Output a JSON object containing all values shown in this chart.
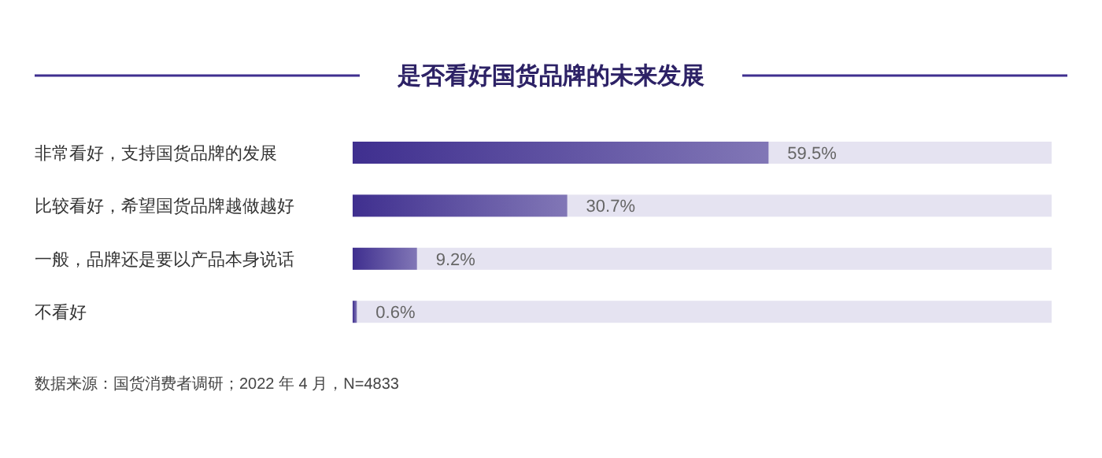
{
  "chart_data": {
    "type": "bar",
    "orientation": "horizontal",
    "title": "是否看好国货品牌的未来发展",
    "categories": [
      "非常看好，支持国货品牌的发展",
      "比较看好，希望国货品牌越做越好",
      "一般，品牌还是要以产品本身说话",
      "不看好"
    ],
    "values": [
      59.5,
      30.7,
      9.2,
      0.6
    ],
    "value_labels": [
      "59.5%",
      "30.7%",
      "9.2%",
      "0.6%"
    ],
    "color": "#3f2f8f",
    "xlim": [
      0,
      100
    ],
    "tick_labels": false,
    "annotations": [
      "数据来源：国货消费者调研；2022 年 4 月，N=4833"
    ]
  }
}
